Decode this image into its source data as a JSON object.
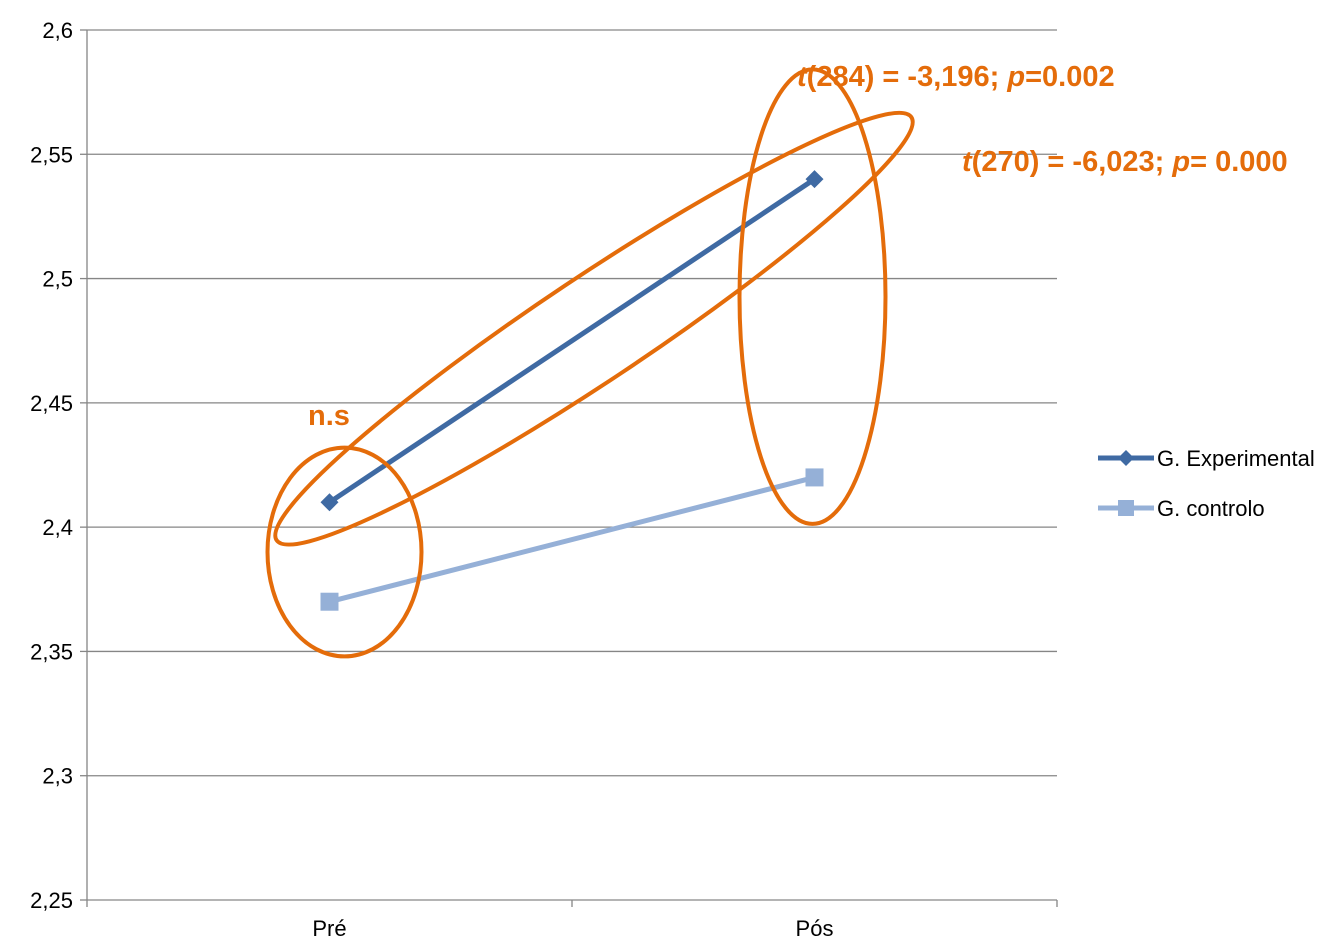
{
  "chart_data": {
    "type": "line",
    "categories": [
      "Pré",
      "Pós"
    ],
    "ylim": [
      2.25,
      2.6
    ],
    "yticks": [
      "2,25",
      "2,3",
      "2,35",
      "2,4",
      "2,45",
      "2,5",
      "2,55",
      "2,6"
    ],
    "grid": "horizontal",
    "legend_position": "right",
    "series": [
      {
        "name": "G. Experimental",
        "values": [
          2.41,
          2.54
        ],
        "color": "#3F6AA3",
        "marker": "diamond"
      },
      {
        "name": "G. controlo",
        "values": [
          2.37,
          2.42
        ],
        "color": "#95B0D7",
        "marker": "square"
      }
    ],
    "annotations": {
      "pre": "n.s",
      "pos": {
        "t": "t",
        "rest": "(284) = -3,196; ",
        "p": "p",
        "val": "=0.002"
      },
      "experimental": {
        "t": "t",
        "rest": "(270) = -6,023; ",
        "p": "p",
        "val": "= 0.000"
      }
    },
    "annotation_color": "#E46C0A"
  }
}
